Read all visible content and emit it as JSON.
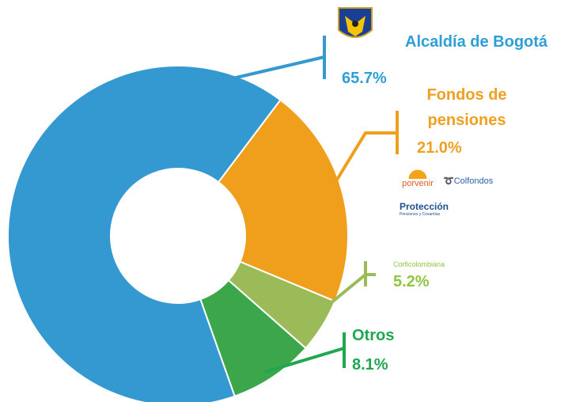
{
  "chart_data": {
    "type": "donut",
    "categories": [
      "Alcaldía de Bogotá",
      "Fondos de pensiones",
      "Corficolombiana",
      "Otros"
    ],
    "values": [
      65.7,
      21.0,
      5.2,
      8.1
    ],
    "value_labels": [
      "65.7%",
      "21.0%",
      "5.2%",
      "8.1%"
    ],
    "colors": [
      "#3399d0",
      "#ef9f1b",
      "#9bbb59",
      "#3ba74a"
    ],
    "label_colors": [
      "#2e9fd6",
      "#f0a020",
      "#8dc63f",
      "#1fa84f"
    ],
    "logos": [
      "porvenir",
      "Colfondos",
      "Protección",
      "Pensiones y Cesantías"
    ]
  }
}
